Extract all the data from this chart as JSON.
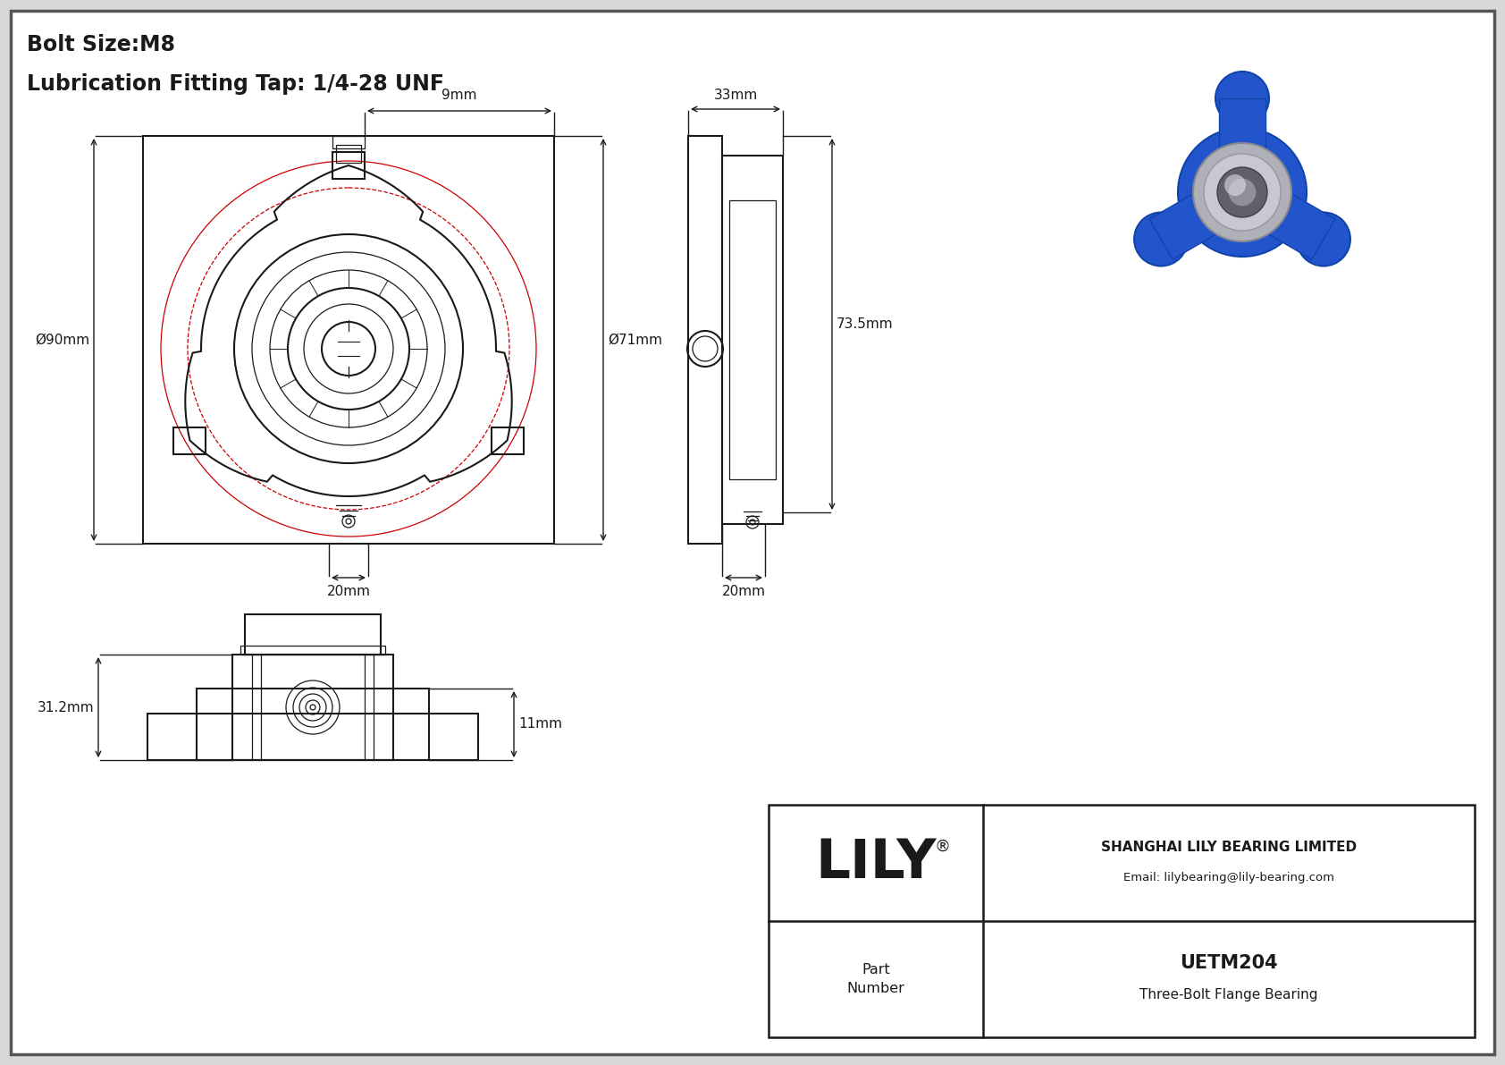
{
  "title_line1": "Bolt Size:M8",
  "title_line2": "Lubrication Fitting Tap: 1/4-28 UNF",
  "part_number": "UETM204",
  "part_name": "Three-Bolt Flange Bearing",
  "company": "SHANGHAI LILY BEARING LIMITED",
  "email": "Email: lilybearing@lily-bearing.com",
  "dim_9mm": "9mm",
  "dim_90mm": "Ø90mm",
  "dim_71mm": "Ø71mm",
  "dim_20mm_front": "20mm",
  "dim_33mm": "33mm",
  "dim_73_5mm": "73.5mm",
  "dim_20mm_side": "20mm",
  "dim_31_2mm": "31.2mm",
  "dim_11mm": "11mm",
  "line_color": "#1a1a1a",
  "red_circle_color": "#cc0000"
}
